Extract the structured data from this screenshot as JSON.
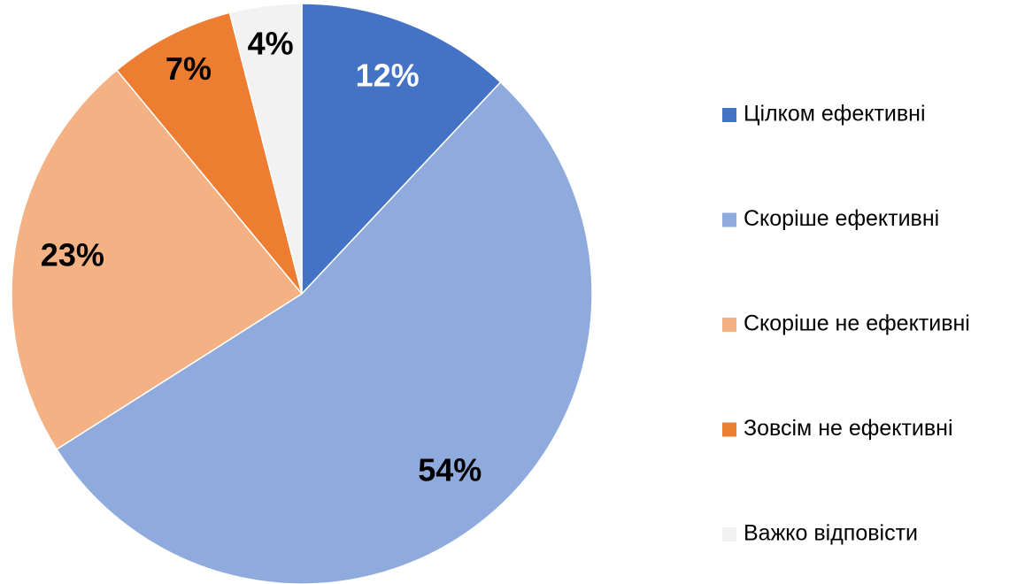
{
  "chart_data": {
    "type": "pie",
    "categories": [
      "Цілком ефективні",
      "Скоріше ефективні",
      "Скоріше не ефективні",
      "Зовсім не ефективні",
      "Важко відповісти"
    ],
    "values": [
      12,
      54,
      23,
      7,
      4
    ],
    "value_labels": [
      "12%",
      "54%",
      "23%",
      "7%",
      "4%"
    ],
    "colors": [
      "#4472c4",
      "#8faadc",
      "#f4b183",
      "#ed7d31",
      "#f2f2f2"
    ],
    "legend": "right"
  }
}
